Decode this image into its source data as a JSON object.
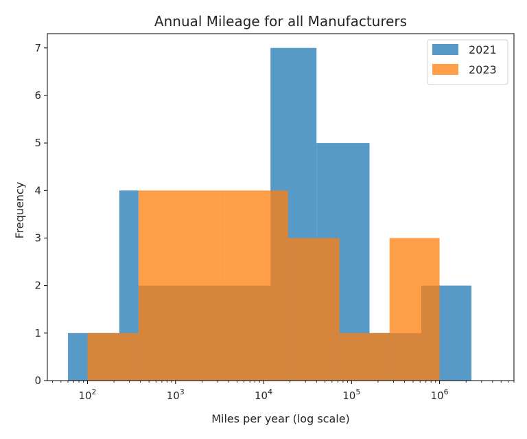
{
  "chart_data": {
    "type": "histogram",
    "title": "Annual Mileage for all Manufacturers",
    "xlabel": "Miles per year (log scale)",
    "ylabel": "Frequency",
    "xscale": "log",
    "xlim": [
      35,
      7000000
    ],
    "ylim": [
      0,
      7.3
    ],
    "yticks": [
      0,
      1,
      2,
      3,
      4,
      5,
      6,
      7
    ],
    "xticks": [
      {
        "value": 100,
        "base": "10",
        "exp": "2"
      },
      {
        "value": 1000,
        "base": "10",
        "exp": "3"
      },
      {
        "value": 10000,
        "base": "10",
        "exp": "4"
      },
      {
        "value": 100000,
        "base": "10",
        "exp": "5"
      },
      {
        "value": 1000000,
        "base": "10",
        "exp": "6"
      }
    ],
    "legend_position": "upper right",
    "grid": false,
    "series": [
      {
        "name": "2021",
        "color": "#1f77b4",
        "opacity": 0.75,
        "bins": [
          {
            "x0": 60,
            "x1": 230,
            "count": 1
          },
          {
            "x0": 230,
            "x1": 380,
            "count": 4
          },
          {
            "x0": 380,
            "x1": 12000,
            "count": 2
          },
          {
            "x0": 12000,
            "x1": 40000,
            "count": 7
          },
          {
            "x0": 40000,
            "x1": 160000,
            "count": 5
          },
          {
            "x0": 160000,
            "x1": 620000,
            "count": 1
          },
          {
            "x0": 620000,
            "x1": 2300000,
            "count": 2
          }
        ]
      },
      {
        "name": "2023",
        "color": "#ff7f0e",
        "opacity": 0.75,
        "bins": [
          {
            "x0": 100,
            "x1": 380,
            "count": 1
          },
          {
            "x0": 380,
            "x1": 3200,
            "count": 4
          },
          {
            "x0": 3200,
            "x1": 19000,
            "count": 4
          },
          {
            "x0": 19000,
            "x1": 73000,
            "count": 3
          },
          {
            "x0": 73000,
            "x1": 270000,
            "count": 1
          },
          {
            "x0": 270000,
            "x1": 1000000,
            "count": 3
          }
        ]
      }
    ]
  }
}
